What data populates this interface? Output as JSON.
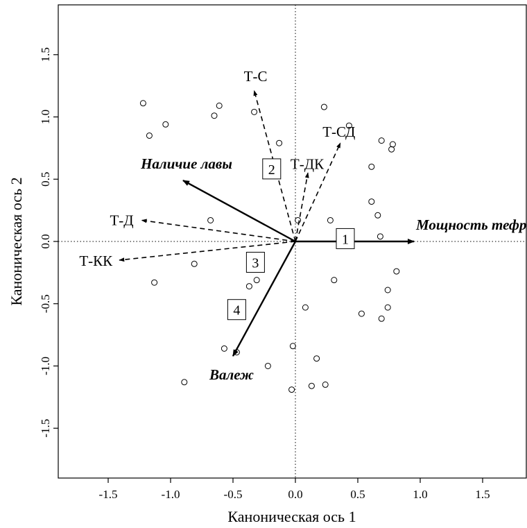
{
  "chart_data": {
    "type": "scatter",
    "title": "",
    "xlabel": "Каноническая ось 1",
    "ylabel": "Каноническая ось 2",
    "xlim": [
      -1.9,
      1.85
    ],
    "ylim": [
      -1.9,
      1.9
    ],
    "xticks": [
      -1.5,
      -1.0,
      -0.5,
      0.0,
      0.5,
      1.0,
      1.5
    ],
    "xtick_labels": [
      "-1.5",
      "-1.0",
      "-0.5",
      "0.0",
      "0.5",
      "1.0",
      "1.5"
    ],
    "yticks": [
      -1.5,
      -1.0,
      -0.5,
      0.0,
      0.5,
      1.0,
      1.5
    ],
    "ytick_labels": [
      "-1.5",
      "-1.0",
      "-0.5",
      "0.0",
      "0.5",
      "1.0",
      "1.5"
    ],
    "grid": false,
    "zero_lines": "dotted",
    "points": [
      {
        "x": -1.22,
        "y": 1.11
      },
      {
        "x": -1.17,
        "y": 0.85
      },
      {
        "x": -1.04,
        "y": 0.94
      },
      {
        "x": -0.61,
        "y": 1.09
      },
      {
        "x": -0.65,
        "y": 1.01
      },
      {
        "x": -0.33,
        "y": 1.04
      },
      {
        "x": -0.13,
        "y": 0.79
      },
      {
        "x": 0.23,
        "y": 1.08
      },
      {
        "x": 0.43,
        "y": 0.93
      },
      {
        "x": 0.69,
        "y": 0.81
      },
      {
        "x": 0.78,
        "y": 0.78
      },
      {
        "x": 0.77,
        "y": 0.74
      },
      {
        "x": 0.61,
        "y": 0.6
      },
      {
        "x": 0.61,
        "y": 0.32
      },
      {
        "x": 0.66,
        "y": 0.21
      },
      {
        "x": 0.68,
        "y": 0.04
      },
      {
        "x": 0.02,
        "y": 0.17
      },
      {
        "x": 0.28,
        "y": 0.17
      },
      {
        "x": -0.68,
        "y": 0.17
      },
      {
        "x": -0.81,
        "y": -0.18
      },
      {
        "x": -1.13,
        "y": -0.33
      },
      {
        "x": -0.31,
        "y": -0.31
      },
      {
        "x": -0.37,
        "y": -0.36
      },
      {
        "x": 0.31,
        "y": -0.31
      },
      {
        "x": 0.81,
        "y": -0.24
      },
      {
        "x": 0.74,
        "y": -0.39
      },
      {
        "x": 0.74,
        "y": -0.53
      },
      {
        "x": 0.69,
        "y": -0.62
      },
      {
        "x": 0.53,
        "y": -0.58
      },
      {
        "x": 0.08,
        "y": -0.53
      },
      {
        "x": -0.57,
        "y": -0.86
      },
      {
        "x": -0.47,
        "y": -0.89
      },
      {
        "x": -0.02,
        "y": -0.84
      },
      {
        "x": -0.22,
        "y": -1.0
      },
      {
        "x": 0.17,
        "y": -0.94
      },
      {
        "x": -0.89,
        "y": -1.13
      },
      {
        "x": 0.13,
        "y": -1.16
      },
      {
        "x": 0.24,
        "y": -1.15
      },
      {
        "x": -0.03,
        "y": -1.19
      }
    ],
    "vectors": [
      {
        "label": "Мощность тефры",
        "x": 0.95,
        "y": 0.0,
        "style": "solid"
      },
      {
        "label": "Наличие лавы",
        "x": -0.9,
        "y": 0.49,
        "style": "solid"
      },
      {
        "label": "Валеж",
        "x": -0.5,
        "y": -0.92,
        "style": "solid"
      },
      {
        "label": "Т-С",
        "x": -0.33,
        "y": 1.21,
        "style": "dashed"
      },
      {
        "label": "Т-СД",
        "x": 0.36,
        "y": 0.79,
        "style": "dashed"
      },
      {
        "label": "Т-ДК",
        "x": 0.1,
        "y": 0.55,
        "style": "dashed"
      },
      {
        "label": "Т-Д",
        "x": -1.23,
        "y": 0.17,
        "style": "dashed"
      },
      {
        "label": "Т-КК",
        "x": -1.41,
        "y": -0.15,
        "style": "dashed"
      }
    ],
    "boxes": [
      {
        "label": "1",
        "x": 0.4,
        "y": 0.02
      },
      {
        "label": "2",
        "x": -0.19,
        "y": 0.58
      },
      {
        "label": "3",
        "x": -0.32,
        "y": -0.17
      },
      {
        "label": "4",
        "x": -0.47,
        "y": -0.55
      }
    ]
  }
}
